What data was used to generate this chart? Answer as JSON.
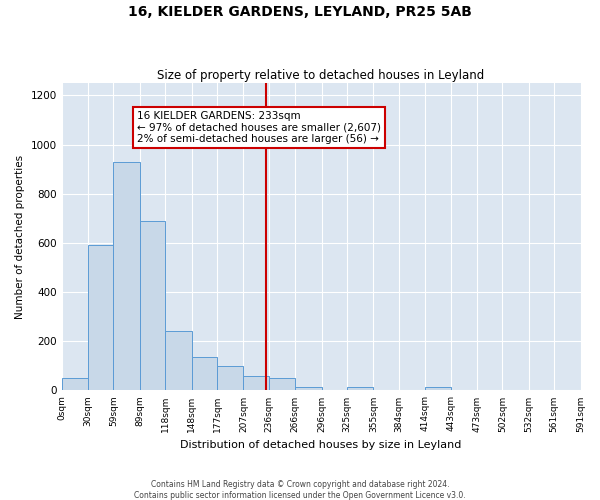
{
  "title_line1": "16, KIELDER GARDENS, LEYLAND, PR25 5AB",
  "title_line2": "Size of property relative to detached houses in Leyland",
  "xlabel": "Distribution of detached houses by size in Leyland",
  "ylabel": "Number of detached properties",
  "annotation_line1": "16 KIELDER GARDENS: 233sqm",
  "annotation_line2": "← 97% of detached houses are smaller (2,607)",
  "annotation_line3": "2% of semi-detached houses are larger (56) →",
  "property_size_sqm": 233,
  "bin_edges": [
    0,
    30,
    59,
    89,
    118,
    148,
    177,
    207,
    236,
    266,
    296,
    325,
    355,
    384,
    414,
    443,
    473,
    502,
    532,
    561,
    591
  ],
  "bin_labels": [
    "0sqm",
    "30sqm",
    "59sqm",
    "89sqm",
    "118sqm",
    "148sqm",
    "177sqm",
    "207sqm",
    "236sqm",
    "266sqm",
    "296sqm",
    "325sqm",
    "355sqm",
    "384sqm",
    "414sqm",
    "443sqm",
    "473sqm",
    "502sqm",
    "532sqm",
    "561sqm",
    "591sqm"
  ],
  "bar_heights": [
    50,
    590,
    930,
    690,
    240,
    135,
    100,
    60,
    50,
    15,
    0,
    15,
    0,
    0,
    15,
    0,
    0,
    0,
    0,
    0
  ],
  "bar_color": "#c8d8e8",
  "bar_edge_color": "#5b9bd5",
  "vline_color": "#cc0000",
  "vline_x": 233,
  "annotation_box_color": "#cc0000",
  "background_color": "#dce6f1",
  "ylim": [
    0,
    1250
  ],
  "yticks": [
    0,
    200,
    400,
    600,
    800,
    1000,
    1200
  ],
  "footer_line1": "Contains HM Land Registry data © Crown copyright and database right 2024.",
  "footer_line2": "Contains public sector information licensed under the Open Government Licence v3.0."
}
